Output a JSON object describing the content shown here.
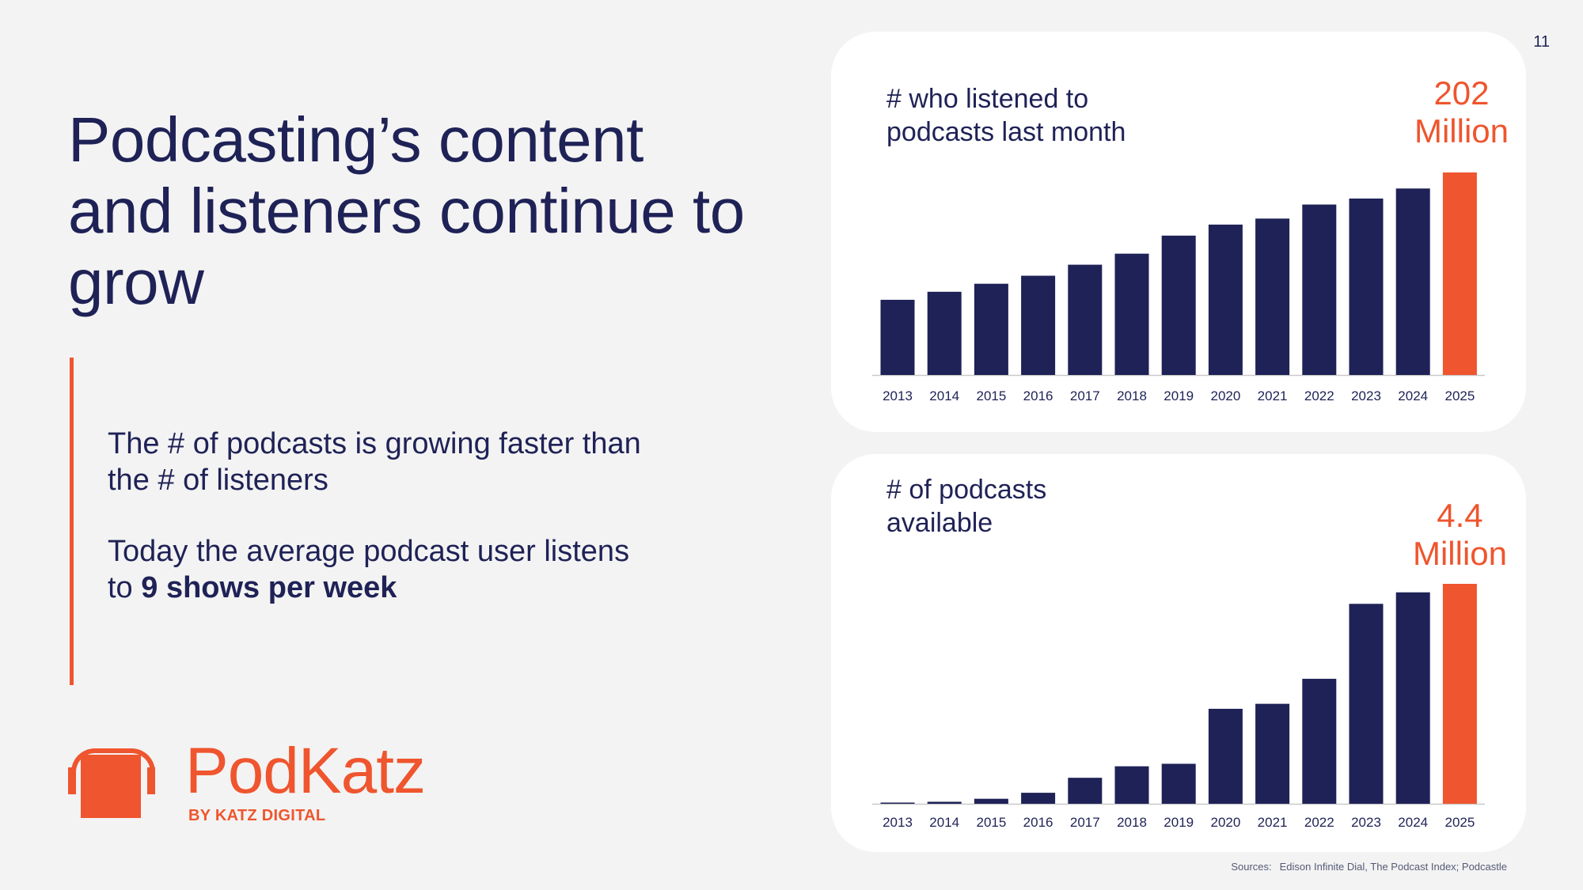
{
  "page_number": "11",
  "title": "Podcasting’s content and listeners continue to grow",
  "bullets": {
    "first": "The # of podcasts is growing faster than the # of listeners",
    "second_prefix": "Today the average podcast user listens to ",
    "second_bold": "9 shows per week"
  },
  "logo": {
    "name": "PodKatz",
    "tagline": "BY KATZ DIGITAL",
    "icon": "headphones-icon"
  },
  "colors": {
    "navy": "#1f2256",
    "accent": "#ef552e",
    "background": "#f3f3f3",
    "card": "#ffffff"
  },
  "sources": {
    "label": "Sources:",
    "text": "Edison Infinite Dial, The Podcast Index; Podcastle"
  },
  "chart_data": [
    {
      "type": "bar",
      "title": "# who listened to\npodcasts last month",
      "callout": "202\nMillion",
      "categories": [
        "2013",
        "2014",
        "2015",
        "2016",
        "2017",
        "2018",
        "2019",
        "2020",
        "2021",
        "2022",
        "2023",
        "2024",
        "2025"
      ],
      "values": [
        75,
        83,
        91,
        99,
        110,
        121,
        139,
        150,
        156,
        170,
        176,
        186,
        202
      ],
      "highlight_index": 12,
      "ylim": [
        0,
        202
      ],
      "grid": false
    },
    {
      "type": "bar",
      "title": "# of podcasts\navailable",
      "callout": "4.4\nMillion",
      "categories": [
        "2013",
        "2014",
        "2015",
        "2016",
        "2017",
        "2018",
        "2019",
        "2020",
        "2021",
        "2022",
        "2023",
        "2024",
        "2025"
      ],
      "values": [
        0.02,
        0.04,
        0.1,
        0.22,
        0.52,
        0.75,
        0.8,
        1.9,
        2.0,
        2.5,
        4.0,
        4.23,
        4.4
      ],
      "highlight_index": 12,
      "ylim": [
        0,
        4.4
      ],
      "grid": false
    }
  ]
}
